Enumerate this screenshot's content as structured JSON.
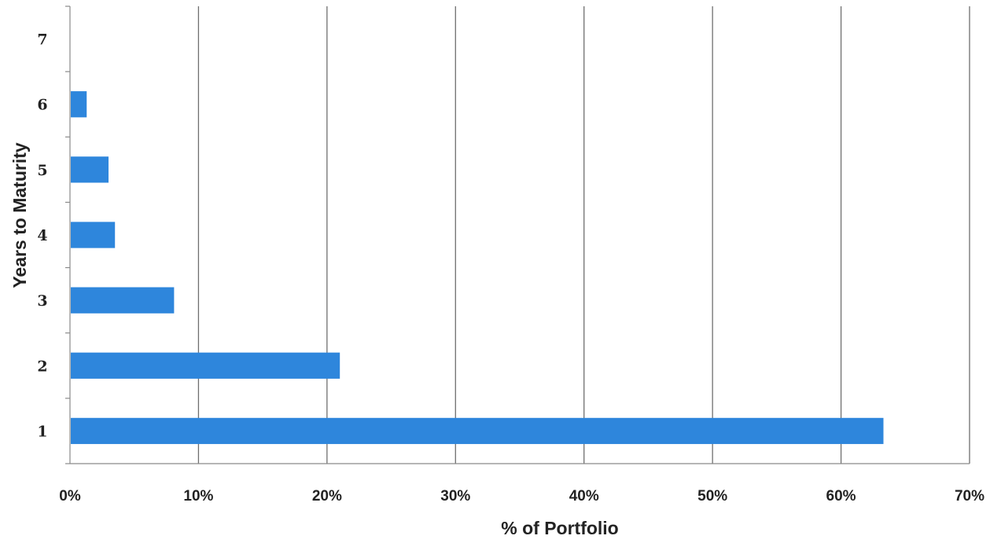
{
  "chart_data": {
    "type": "bar",
    "orientation": "horizontal",
    "categories": [
      "1",
      "2",
      "3",
      "4",
      "5",
      "6",
      "7"
    ],
    "values": [
      63.3,
      21.0,
      8.1,
      3.5,
      3.0,
      1.3,
      0
    ],
    "xlabel": "% of Portfolio",
    "ylabel": "Years to Maturity",
    "xlim": [
      0,
      70
    ],
    "xticks": [
      "0%",
      "10%",
      "20%",
      "30%",
      "40%",
      "50%",
      "60%",
      "70%"
    ],
    "grid": "vertical",
    "bar_color": "#2e86dc"
  }
}
